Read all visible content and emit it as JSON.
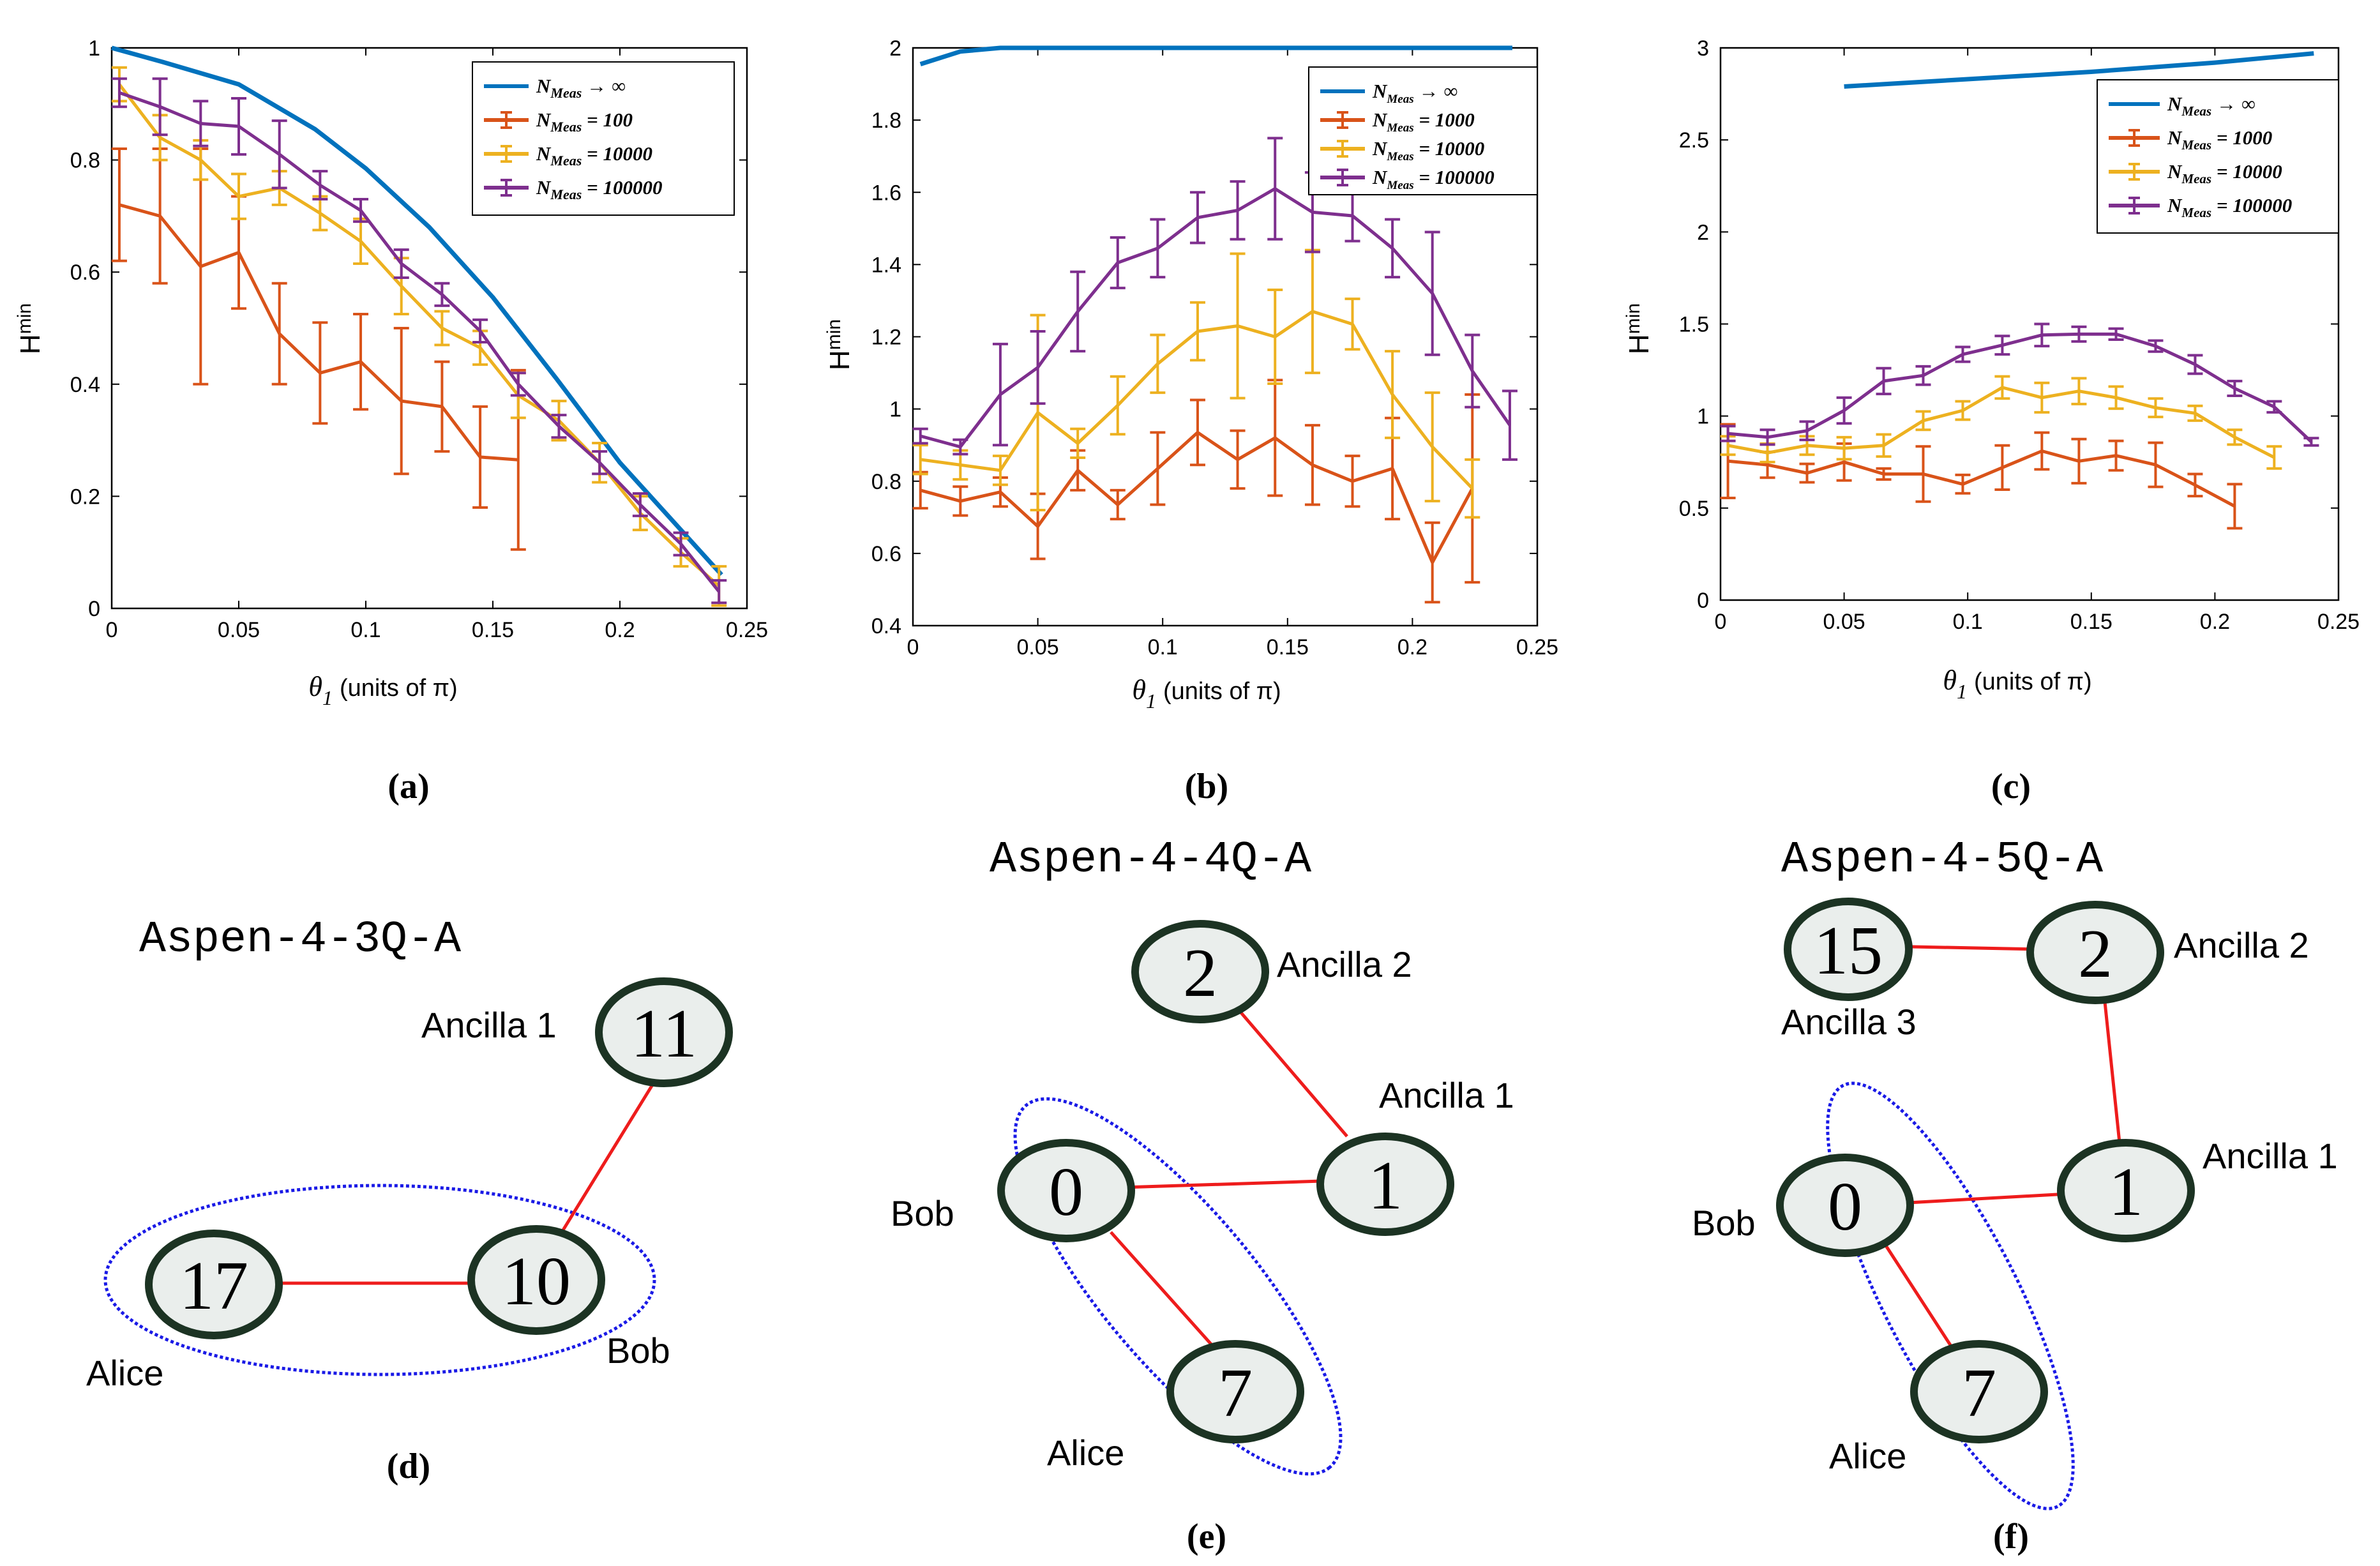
{
  "colors": {
    "inf": "#0072BD",
    "low": "#D95319",
    "mid": "#EDB120",
    "high": "#7E2F8E",
    "edge": "#ee1c1c",
    "ellipse": "#1a1ae6",
    "qubit_fill": "#eaeeec",
    "qubit_stroke": "#1c3323"
  },
  "chart_data": [
    {
      "type": "line",
      "caption": "(a)",
      "title": "",
      "xlabel_main": "θ",
      "xlabel_sub": "1",
      "xlabel_rest": "(units of   π)",
      "ylabel_main": "H",
      "ylabel_sub": "min",
      "xlim": [
        0,
        0.25
      ],
      "ylim": [
        0,
        1
      ],
      "xticks": [
        "0",
        "0.05",
        "0.1",
        "0.15",
        "0.2",
        "0.25"
      ],
      "yticks": [
        "0",
        "0.2",
        "0.4",
        "0.6",
        "0.8",
        "1"
      ],
      "series": [
        {
          "name": "N_Meas → ∞",
          "legend_main": "N",
          "legend_sub": "Meas",
          "legend_rest": "→ ∞",
          "color_key": "inf",
          "x": [
            0,
            0.02,
            0.05,
            0.08,
            0.1,
            0.125,
            0.15,
            0.175,
            0.2,
            0.24
          ],
          "y": [
            1,
            0.975,
            0.935,
            0.855,
            0.785,
            0.68,
            0.555,
            0.41,
            0.26,
            0.06
          ],
          "err": []
        },
        {
          "name": "N_Meas = 100",
          "legend_main": "N",
          "legend_sub": "Meas",
          "legend_rest": "= 100",
          "color_key": "low",
          "x": [
            0.003,
            0.019,
            0.035,
            0.05,
            0.066,
            0.082,
            0.098,
            0.114,
            0.13,
            0.145,
            0.16
          ],
          "y": [
            0.72,
            0.7,
            0.61,
            0.635,
            0.49,
            0.42,
            0.44,
            0.37,
            0.36,
            0.27,
            0.265
          ],
          "err": [
            0.1,
            0.12,
            0.21,
            0.1,
            0.09,
            0.09,
            0.085,
            0.13,
            0.08,
            0.09,
            0.16
          ]
        },
        {
          "name": "N_Meas = 10000",
          "legend_main": "N",
          "legend_sub": "Meas",
          "legend_rest": "= 10000",
          "color_key": "mid",
          "x": [
            0.003,
            0.019,
            0.035,
            0.05,
            0.066,
            0.082,
            0.098,
            0.114,
            0.13,
            0.145,
            0.16,
            0.176,
            0.192,
            0.208,
            0.224,
            0.239
          ],
          "y": [
            0.935,
            0.84,
            0.8,
            0.735,
            0.75,
            0.705,
            0.655,
            0.575,
            0.5,
            0.465,
            0.38,
            0.335,
            0.26,
            0.17,
            0.1,
            0.04
          ],
          "err": [
            0.03,
            0.04,
            0.035,
            0.04,
            0.03,
            0.03,
            0.04,
            0.05,
            0.03,
            0.03,
            0.04,
            0.035,
            0.035,
            0.03,
            0.025,
            0.035
          ]
        },
        {
          "name": "N_Meas = 100000",
          "legend_main": "N",
          "legend_sub": "Meas",
          "legend_rest": "= 100000",
          "color_key": "high",
          "x": [
            0.003,
            0.019,
            0.035,
            0.05,
            0.066,
            0.082,
            0.098,
            0.114,
            0.13,
            0.145,
            0.16,
            0.176,
            0.192,
            0.208,
            0.224,
            0.239
          ],
          "y": [
            0.92,
            0.895,
            0.865,
            0.86,
            0.81,
            0.755,
            0.71,
            0.615,
            0.56,
            0.495,
            0.4,
            0.325,
            0.26,
            0.185,
            0.115,
            0.03
          ],
          "err": [
            0.025,
            0.05,
            0.04,
            0.05,
            0.06,
            0.025,
            0.02,
            0.025,
            0.02,
            0.02,
            0.02,
            0.02,
            0.02,
            0.02,
            0.02,
            0.02
          ]
        }
      ]
    },
    {
      "type": "line",
      "caption": "(b)",
      "title": "",
      "xlabel_main": "θ",
      "xlabel_sub": "1",
      "xlabel_rest": "(units of   π)",
      "ylabel_main": "H",
      "ylabel_sub": "min",
      "xlim": [
        0,
        0.25
      ],
      "ylim": [
        0.4,
        2
      ],
      "xticks": [
        "0",
        "0.05",
        "0.1",
        "0.15",
        "0.2",
        "0.25"
      ],
      "yticks": [
        "0.4",
        "0.6",
        "0.8",
        "1",
        "1.2",
        "1.4",
        "1.6",
        "1.8",
        "2"
      ],
      "series": [
        {
          "name": "N_Meas → ∞",
          "legend_main": "N",
          "legend_sub": "Meas",
          "legend_rest": "→ ∞",
          "color_key": "inf",
          "x": [
            0.003,
            0.019,
            0.035,
            0.06,
            0.1,
            0.15,
            0.2,
            0.24
          ],
          "y": [
            1.955,
            1.99,
            2.0,
            2.0,
            2.0,
            2.0,
            2.0,
            2.0
          ],
          "err": []
        },
        {
          "name": "N_Meas = 1000",
          "legend_main": "N",
          "legend_sub": "Meas",
          "legend_rest": "= 1000",
          "color_key": "low",
          "x": [
            0.003,
            0.019,
            0.035,
            0.05,
            0.066,
            0.082,
            0.098,
            0.114,
            0.13,
            0.145,
            0.16,
            0.176,
            0.192,
            0.208,
            0.224
          ],
          "y": [
            0.775,
            0.745,
            0.77,
            0.675,
            0.83,
            0.735,
            0.835,
            0.935,
            0.86,
            0.92,
            0.845,
            0.8,
            0.835,
            0.575,
            0.78
          ],
          "err": [
            0.05,
            0.04,
            0.04,
            0.09,
            0.055,
            0.04,
            0.1,
            0.09,
            0.08,
            0.16,
            0.11,
            0.07,
            0.14,
            0.11,
            0.26
          ]
        },
        {
          "name": "N_Meas = 10000",
          "legend_main": "N",
          "legend_sub": "Meas",
          "legend_rest": "= 10000",
          "color_key": "mid",
          "x": [
            0.003,
            0.019,
            0.035,
            0.05,
            0.066,
            0.082,
            0.098,
            0.114,
            0.13,
            0.145,
            0.16,
            0.176,
            0.192,
            0.208,
            0.224
          ],
          "y": [
            0.86,
            0.845,
            0.83,
            0.99,
            0.905,
            1.01,
            1.125,
            1.215,
            1.23,
            1.2,
            1.27,
            1.235,
            1.04,
            0.895,
            0.78
          ],
          "err": [
            0.04,
            0.04,
            0.04,
            0.27,
            0.04,
            0.08,
            0.08,
            0.08,
            0.2,
            0.13,
            0.17,
            0.07,
            0.12,
            0.15,
            0.08
          ]
        },
        {
          "name": "N_Meas = 100000",
          "legend_main": "N",
          "legend_sub": "Meas",
          "legend_rest": "= 100000",
          "color_key": "high",
          "x": [
            0.003,
            0.019,
            0.035,
            0.05,
            0.066,
            0.082,
            0.098,
            0.114,
            0.13,
            0.145,
            0.16,
            0.176,
            0.192,
            0.208,
            0.224,
            0.239
          ],
          "y": [
            0.925,
            0.895,
            1.04,
            1.115,
            1.27,
            1.405,
            1.445,
            1.53,
            1.55,
            1.61,
            1.545,
            1.535,
            1.445,
            1.32,
            1.105,
            0.955
          ],
          "err": [
            0.02,
            0.02,
            0.14,
            0.1,
            0.11,
            0.07,
            0.08,
            0.07,
            0.08,
            0.14,
            0.11,
            0.07,
            0.08,
            0.17,
            0.1,
            0.095
          ]
        }
      ]
    },
    {
      "type": "line",
      "caption": "(c)",
      "title": "",
      "xlabel_main": "θ",
      "xlabel_sub": "1",
      "xlabel_rest": "(units of   π)",
      "ylabel_main": "H",
      "ylabel_sub": "min",
      "xlim": [
        0,
        0.25
      ],
      "ylim": [
        0,
        3
      ],
      "xticks": [
        "0",
        "0.05",
        "0.1",
        "0.15",
        "0.2",
        "0.25"
      ],
      "yticks": [
        "0",
        "0.5",
        "1",
        "1.5",
        "2",
        "2.5",
        "3"
      ],
      "series": [
        {
          "name": "N_Meas → ∞",
          "legend_main": "N",
          "legend_sub": "Meas",
          "legend_rest": "→ ∞",
          "color_key": "inf",
          "x": [
            0.05,
            0.1,
            0.15,
            0.2,
            0.24
          ],
          "y": [
            2.79,
            2.83,
            2.87,
            2.92,
            2.97
          ],
          "err": []
        },
        {
          "name": "N_Meas = 1000",
          "legend_main": "N",
          "legend_sub": "Meas",
          "legend_rest": "= 1000",
          "color_key": "low",
          "x": [
            0.003,
            0.019,
            0.035,
            0.05,
            0.066,
            0.082,
            0.098,
            0.114,
            0.13,
            0.145,
            0.16,
            0.176,
            0.192,
            0.208
          ],
          "y": [
            0.755,
            0.735,
            0.69,
            0.75,
            0.685,
            0.685,
            0.63,
            0.72,
            0.81,
            0.755,
            0.785,
            0.735,
            0.625,
            0.51
          ],
          "err": [
            0.2,
            0.07,
            0.05,
            0.1,
            0.03,
            0.15,
            0.05,
            0.12,
            0.1,
            0.12,
            0.08,
            0.12,
            0.06,
            0.12
          ]
        },
        {
          "name": "N_Meas = 10000",
          "legend_main": "N",
          "legend_sub": "Meas",
          "legend_rest": "= 10000",
          "color_key": "mid",
          "x": [
            0.003,
            0.019,
            0.035,
            0.05,
            0.066,
            0.082,
            0.098,
            0.114,
            0.13,
            0.145,
            0.16,
            0.176,
            0.192,
            0.208,
            0.224
          ],
          "y": [
            0.84,
            0.8,
            0.84,
            0.825,
            0.84,
            0.975,
            1.03,
            1.155,
            1.1,
            1.135,
            1.1,
            1.045,
            1.015,
            0.885,
            0.775
          ],
          "err": [
            0.05,
            0.05,
            0.05,
            0.06,
            0.06,
            0.05,
            0.05,
            0.06,
            0.08,
            0.07,
            0.06,
            0.05,
            0.04,
            0.04,
            0.06
          ]
        },
        {
          "name": "N_Meas = 100000",
          "legend_main": "N",
          "legend_sub": "Meas",
          "legend_rest": "= 100000",
          "color_key": "high",
          "x": [
            0.003,
            0.019,
            0.035,
            0.05,
            0.066,
            0.082,
            0.098,
            0.114,
            0.13,
            0.145,
            0.16,
            0.176,
            0.192,
            0.208,
            0.224,
            0.239
          ],
          "y": [
            0.905,
            0.885,
            0.92,
            1.03,
            1.19,
            1.22,
            1.335,
            1.385,
            1.44,
            1.445,
            1.445,
            1.38,
            1.28,
            1.15,
            1.05,
            0.86
          ],
          "err": [
            0.04,
            0.04,
            0.05,
            0.07,
            0.07,
            0.05,
            0.04,
            0.05,
            0.06,
            0.04,
            0.03,
            0.03,
            0.05,
            0.04,
            0.03,
            0.02
          ]
        }
      ]
    }
  ],
  "diagrams": [
    {
      "caption": "(d)",
      "title": "Aspen-4-3Q-A",
      "qubits": [
        {
          "number": "11",
          "label": "Ancilla 1"
        },
        {
          "number": "17",
          "label": "Alice"
        },
        {
          "number": "10",
          "label": "Bob"
        }
      ]
    },
    {
      "caption": "(e)",
      "title": "Aspen-4-4Q-A",
      "qubits": [
        {
          "number": "2",
          "label": "Ancilla 2"
        },
        {
          "number": "1",
          "label": "Ancilla 1"
        },
        {
          "number": "0",
          "label": "Bob"
        },
        {
          "number": "7",
          "label": "Alice"
        }
      ]
    },
    {
      "caption": "(f)",
      "title": "Aspen-4-5Q-A",
      "qubits": [
        {
          "number": "15",
          "label": "Ancilla 3"
        },
        {
          "number": "2",
          "label": "Ancilla 2"
        },
        {
          "number": "1",
          "label": "Ancilla 1"
        },
        {
          "number": "0",
          "label": "Bob"
        },
        {
          "number": "7",
          "label": "Alice"
        }
      ]
    }
  ]
}
